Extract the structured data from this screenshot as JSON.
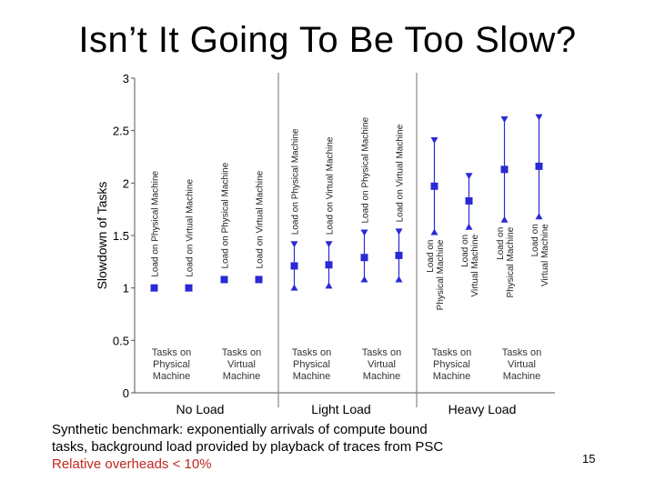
{
  "slide": {
    "title": "Isn’t It Going To Be Too Slow?",
    "caption_line1": "Synthetic benchmark: exponentially arrivals of compute bound",
    "caption_line2": "tasks, background load provided by playback of traces from PSC",
    "caption_line3": "Relative overheads < 10%",
    "page_number": "15"
  },
  "colors": {
    "marker": "#2a2ad4",
    "axis": "#555555",
    "divider": "#888888",
    "caption_highlight": "#c0281e"
  },
  "chart_data": {
    "type": "scatter",
    "title": "",
    "ylabel": "Slowdown of Tasks",
    "ylim": [
      0,
      3
    ],
    "yticks": [
      "0",
      "0.5",
      "1",
      "1.5",
      "2",
      "2.5",
      "3"
    ],
    "groups": [
      "No Load",
      "Light Load",
      "Heavy Load"
    ],
    "categories": [
      {
        "group": "No Load",
        "task_label": [
          "Tasks on",
          "Physical",
          "Machine"
        ],
        "series": [
          {
            "load_label": [
              "Load on Physical Machine"
            ],
            "mean": 1.0
          },
          {
            "load_label": [
              "Load on Virtual Machine"
            ],
            "mean": 1.0
          }
        ]
      },
      {
        "group": "No Load",
        "task_label": [
          "Tasks on",
          "Virtual",
          "Machine"
        ],
        "series": [
          {
            "load_label": [
              "Load on Physical Machine"
            ],
            "mean": 1.08
          },
          {
            "load_label": [
              "Load on Virtual Machine"
            ],
            "mean": 1.08
          }
        ]
      },
      {
        "group": "Light Load",
        "task_label": [
          "Tasks on",
          "Physical",
          "Machine"
        ],
        "series": [
          {
            "load_label": [
              "Load on Physical Machine"
            ],
            "mean": 1.21,
            "low": 1.0,
            "high": 1.42
          },
          {
            "load_label": [
              "Load on Virtual Machine"
            ],
            "mean": 1.22,
            "low": 1.02,
            "high": 1.42
          }
        ]
      },
      {
        "group": "Light Load",
        "task_label": [
          "Tasks on",
          "Virtual",
          "Machine"
        ],
        "series": [
          {
            "load_label": [
              "Load on Physical Machine"
            ],
            "mean": 1.29,
            "low": 1.08,
            "high": 1.53
          },
          {
            "load_label": [
              "Load on Virtual Machine"
            ],
            "mean": 1.31,
            "low": 1.08,
            "high": 1.54
          }
        ]
      },
      {
        "group": "Heavy Load",
        "task_label": [
          "Tasks on",
          "Physical",
          "Machine"
        ],
        "series": [
          {
            "load_label": [
              "Load on",
              "Physical Machine"
            ],
            "mean": 1.97,
            "low": 1.53,
            "high": 2.41
          },
          {
            "load_label": [
              "Load on",
              "Virtual Machine"
            ],
            "mean": 1.83,
            "low": 1.58,
            "high": 2.07
          }
        ]
      },
      {
        "group": "Heavy Load",
        "task_label": [
          "Tasks on",
          "Virtual",
          "Machine"
        ],
        "series": [
          {
            "load_label": [
              "Load on",
              "Physical Machine"
            ],
            "mean": 2.13,
            "low": 1.65,
            "high": 2.61
          },
          {
            "load_label": [
              "Load on",
              "Virtual Machine"
            ],
            "mean": 2.16,
            "low": 1.68,
            "high": 2.63
          }
        ]
      }
    ],
    "grid": false,
    "legend": "none"
  }
}
